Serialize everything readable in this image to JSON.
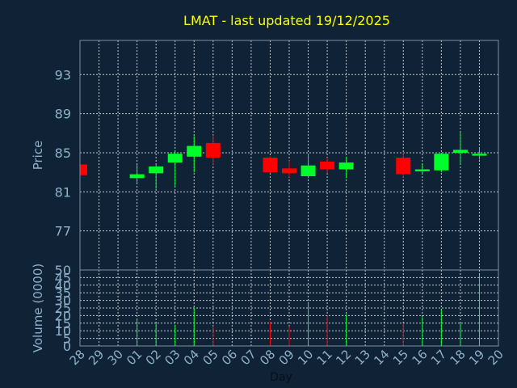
{
  "title": "LMAT - last updated 19/12/2025",
  "colors": {
    "background": "#0f2236",
    "grid": "#ffffff",
    "up": "#00ff2a",
    "down": "#ff0000",
    "title": "#ffff00",
    "axis_text": "#8fb1c9"
  },
  "chart_data": [
    {
      "type": "candlestick",
      "ylabel": "Price",
      "ylim": [
        73,
        96.5
      ],
      "yticks": [
        77,
        81,
        85,
        89,
        93
      ],
      "grid": true,
      "categories": [
        "28",
        "29",
        "30",
        "01",
        "02",
        "03",
        "04",
        "05",
        "06",
        "07",
        "08",
        "09",
        "10",
        "11",
        "12",
        "13",
        "14",
        "15",
        "16",
        "17",
        "18",
        "19",
        "20"
      ],
      "candles": [
        {
          "day": "28",
          "open": 83.8,
          "high": 83.8,
          "low": 82.7,
          "close": 82.7
        },
        {
          "day": "01",
          "open": 82.4,
          "high": 83.8,
          "low": 81.9,
          "close": 82.8
        },
        {
          "day": "02",
          "open": 82.9,
          "high": 83.8,
          "low": 81.3,
          "close": 83.6
        },
        {
          "day": "03",
          "open": 84.0,
          "high": 85.1,
          "low": 81.6,
          "close": 84.9
        },
        {
          "day": "04",
          "open": 84.6,
          "high": 86.7,
          "low": 83.0,
          "close": 85.7
        },
        {
          "day": "05",
          "open": 86.0,
          "high": 86.8,
          "low": 83.7,
          "close": 84.5
        },
        {
          "day": "08",
          "open": 84.5,
          "high": 84.6,
          "low": 82.9,
          "close": 83.0
        },
        {
          "day": "09",
          "open": 83.4,
          "high": 84.2,
          "low": 82.5,
          "close": 82.9
        },
        {
          "day": "10",
          "open": 82.6,
          "high": 84.9,
          "low": 82.4,
          "close": 83.7
        },
        {
          "day": "11",
          "open": 84.1,
          "high": 84.5,
          "low": 82.9,
          "close": 83.3
        },
        {
          "day": "12",
          "open": 83.3,
          "high": 84.6,
          "low": 82.4,
          "close": 84.0
        },
        {
          "day": "15",
          "open": 84.5,
          "high": 85.1,
          "low": 82.4,
          "close": 82.8
        },
        {
          "day": "16",
          "open": 83.1,
          "high": 83.9,
          "low": 82.9,
          "close": 83.3
        },
        {
          "day": "17",
          "open": 83.2,
          "high": 85.0,
          "low": 83.0,
          "close": 84.9
        },
        {
          "day": "18",
          "open": 85.0,
          "high": 87.1,
          "low": 83.8,
          "close": 85.3
        },
        {
          "day": "19",
          "open": 84.7,
          "high": 85.5,
          "low": 84.3,
          "close": 84.9
        }
      ]
    },
    {
      "type": "bar",
      "ylabel": "Volume (0000)",
      "xlabel": "Day",
      "ylim": [
        0,
        50
      ],
      "yticks": [
        0,
        5,
        10,
        15,
        20,
        25,
        30,
        35,
        40,
        45,
        50
      ],
      "grid": true,
      "categories": [
        "28",
        "29",
        "30",
        "01",
        "02",
        "03",
        "04",
        "05",
        "06",
        "07",
        "08",
        "09",
        "10",
        "11",
        "12",
        "13",
        "14",
        "15",
        "16",
        "17",
        "18",
        "19",
        "20"
      ],
      "bars": [
        {
          "day": "28",
          "value": 0,
          "direction": "down"
        },
        {
          "day": "01",
          "value": 18,
          "direction": "up"
        },
        {
          "day": "02",
          "value": 15,
          "direction": "up"
        },
        {
          "day": "03",
          "value": 14,
          "direction": "up"
        },
        {
          "day": "04",
          "value": 25,
          "direction": "up"
        },
        {
          "day": "05",
          "value": 13,
          "direction": "down"
        },
        {
          "day": "08",
          "value": 16,
          "direction": "down"
        },
        {
          "day": "09",
          "value": 13,
          "direction": "down"
        },
        {
          "day": "10",
          "value": 29,
          "direction": "up"
        },
        {
          "day": "11",
          "value": 20,
          "direction": "down"
        },
        {
          "day": "12",
          "value": 21,
          "direction": "up"
        },
        {
          "day": "15",
          "value": 15,
          "direction": "down"
        },
        {
          "day": "16",
          "value": 19,
          "direction": "up"
        },
        {
          "day": "17",
          "value": 24,
          "direction": "up"
        },
        {
          "day": "18",
          "value": 15,
          "direction": "up"
        },
        {
          "day": "19",
          "value": 47,
          "direction": "up"
        }
      ]
    }
  ]
}
